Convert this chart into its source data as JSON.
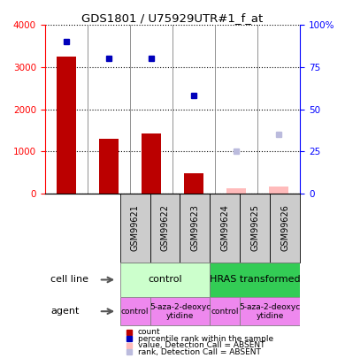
{
  "title": "GDS1801 / U75929UTR#1_f_at",
  "samples": [
    "GSM99621",
    "GSM99622",
    "GSM99623",
    "GSM99624",
    "GSM99625",
    "GSM99626"
  ],
  "bar_values": [
    3250,
    1310,
    1430,
    490,
    null,
    null
  ],
  "bar_absent_values": [
    null,
    null,
    null,
    null,
    120,
    170
  ],
  "rank_values": [
    90,
    80,
    80,
    58,
    null,
    null
  ],
  "rank_absent_values": [
    null,
    null,
    null,
    null,
    25,
    35
  ],
  "bar_color": "#bb0000",
  "bar_absent_color": "#ffbbbb",
  "rank_color": "#0000bb",
  "rank_absent_color": "#bbbbdd",
  "ylim_left": [
    0,
    4000
  ],
  "ylim_right": [
    0,
    100
  ],
  "yticks_left": [
    0,
    1000,
    2000,
    3000,
    4000
  ],
  "yticks_right": [
    0,
    25,
    50,
    75,
    100
  ],
  "cell_line_groups": [
    {
      "label": "control",
      "span": [
        0,
        3
      ],
      "color": "#ccffcc"
    },
    {
      "label": "HRAS transformed",
      "span": [
        3,
        6
      ],
      "color": "#33cc55"
    }
  ],
  "agent_groups": [
    {
      "label": "control",
      "span": [
        0,
        1
      ],
      "color": "#ee88ee"
    },
    {
      "label": "5-aza-2-deoxyc\nytidine",
      "span": [
        1,
        3
      ],
      "color": "#ee88ee"
    },
    {
      "label": "control",
      "span": [
        3,
        4
      ],
      "color": "#ee88ee"
    },
    {
      "label": "5-aza-2-deoxyc\nytidine",
      "span": [
        4,
        6
      ],
      "color": "#ee88ee"
    }
  ],
  "legend_items": [
    {
      "color": "#bb0000",
      "label": "count"
    },
    {
      "color": "#0000bb",
      "label": "percentile rank within the sample"
    },
    {
      "color": "#ffbbbb",
      "label": "value, Detection Call = ABSENT"
    },
    {
      "color": "#bbbbdd",
      "label": "rank, Detection Call = ABSENT"
    }
  ],
  "sample_box_color": "#cccccc",
  "left_label_color": "#333333",
  "arrow_color": "#666666"
}
